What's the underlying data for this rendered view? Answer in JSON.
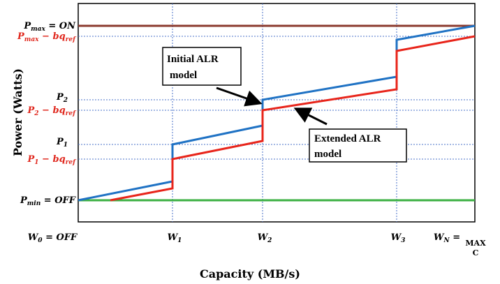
{
  "axis_titles": {
    "y": "Power (Watts)",
    "x": "Capacity (MB/s)"
  },
  "y_labels": [
    {
      "base": "P",
      "sub": "max",
      "rest": " = ON"
    },
    {
      "base": "P",
      "sub": "max",
      "rest": " − bq",
      "sub2": "ref"
    },
    {
      "base": "P",
      "sub": "2"
    },
    {
      "base": "P",
      "sub": "2",
      "rest": " − bq",
      "sub2": "ref"
    },
    {
      "base": "P",
      "sub": "1"
    },
    {
      "base": "P",
      "sub": "1",
      "rest": " − bq",
      "sub2": "ref"
    },
    {
      "base": "P",
      "sub": "min",
      "rest": " = OFF"
    }
  ],
  "x_labels": [
    {
      "base": "W",
      "sub": "0",
      "rest": " = OFF"
    },
    {
      "base": "W",
      "sub": "1"
    },
    {
      "base": "W",
      "sub": "2"
    },
    {
      "base": "W",
      "sub": "3"
    },
    {
      "base": "W",
      "sub": "N",
      "rest": " = ",
      "extra": [
        "MAX",
        "C"
      ]
    }
  ],
  "callouts": [
    {
      "lines": [
        "Initial ALR",
        "model"
      ]
    },
    {
      "lines": [
        "Extended ALR",
        "model"
      ]
    }
  ]
}
